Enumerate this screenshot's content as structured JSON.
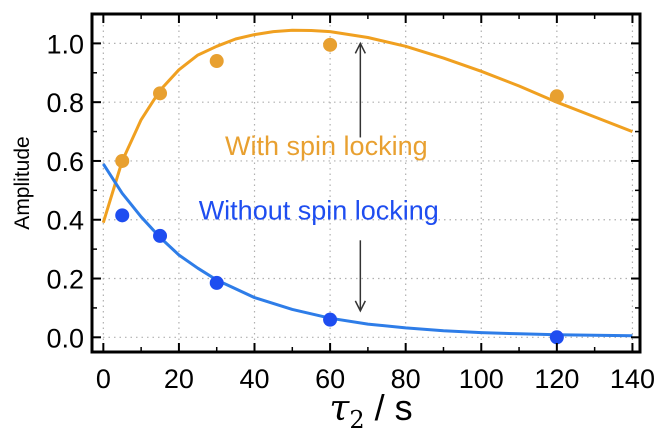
{
  "chart_data": {
    "type": "scatter",
    "xlabel_symbol": "τ",
    "xlabel_subscript": "2",
    "xlabel_unit": " / s",
    "ylabel": "Amplitude",
    "xlim": [
      -3,
      142
    ],
    "ylim": [
      -0.05,
      1.1
    ],
    "xticks": [
      "0",
      "20",
      "40",
      "60",
      "80",
      "100",
      "120",
      "140"
    ],
    "yticks": [
      "0.0",
      "0.2",
      "0.4",
      "0.6",
      "0.8",
      "1.0"
    ],
    "grid": true,
    "series": [
      {
        "name": "With spin locking",
        "color": "#E8A030",
        "line_color": "#F0A020",
        "points": [
          [
            5,
            0.6
          ],
          [
            15,
            0.83
          ],
          [
            30,
            0.94
          ],
          [
            60,
            0.995
          ],
          [
            120,
            0.82
          ]
        ],
        "fit_curve": [
          [
            0,
            0.39
          ],
          [
            5,
            0.6
          ],
          [
            10,
            0.74
          ],
          [
            15,
            0.84
          ],
          [
            20,
            0.91
          ],
          [
            25,
            0.96
          ],
          [
            30,
            0.99
          ],
          [
            35,
            1.015
          ],
          [
            40,
            1.03
          ],
          [
            45,
            1.04
          ],
          [
            50,
            1.045
          ],
          [
            55,
            1.044
          ],
          [
            60,
            1.04
          ],
          [
            70,
            1.02
          ],
          [
            80,
            0.99
          ],
          [
            90,
            0.95
          ],
          [
            100,
            0.905
          ],
          [
            110,
            0.855
          ],
          [
            120,
            0.8
          ],
          [
            130,
            0.75
          ],
          [
            140,
            0.7
          ]
        ]
      },
      {
        "name": "Without spin locking",
        "color": "#1E4DF0",
        "line_color": "#2E7DE8",
        "points": [
          [
            5,
            0.415
          ],
          [
            15,
            0.345
          ],
          [
            30,
            0.185
          ],
          [
            60,
            0.06
          ],
          [
            120,
            0.0
          ]
        ],
        "fit_curve": [
          [
            0,
            0.59
          ],
          [
            5,
            0.49
          ],
          [
            10,
            0.41
          ],
          [
            15,
            0.34
          ],
          [
            20,
            0.28
          ],
          [
            25,
            0.235
          ],
          [
            30,
            0.195
          ],
          [
            40,
            0.135
          ],
          [
            50,
            0.095
          ],
          [
            60,
            0.065
          ],
          [
            70,
            0.045
          ],
          [
            80,
            0.032
          ],
          [
            90,
            0.022
          ],
          [
            100,
            0.016
          ],
          [
            110,
            0.012
          ],
          [
            120,
            0.009
          ],
          [
            130,
            0.007
          ],
          [
            140,
            0.005
          ]
        ]
      }
    ],
    "annotations": [
      {
        "text": "With spin locking",
        "color": "#E8A030"
      },
      {
        "text": "Without spin locking",
        "color": "#1E4DF0"
      }
    ],
    "arrows": [
      {
        "x": 68,
        "from": 0.68,
        "to": 1.0
      },
      {
        "x": 68,
        "from": 0.33,
        "to": 0.09
      }
    ]
  }
}
